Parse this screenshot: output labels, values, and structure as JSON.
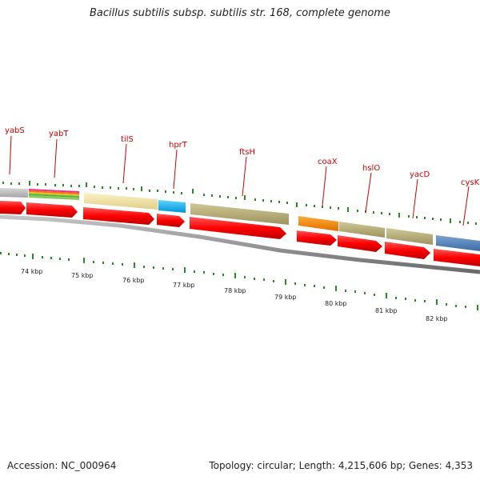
{
  "title": "Bacillus subtilis subsp. subtilis str. 168, complete genome",
  "footer": {
    "accession": "Accession: NC_000964",
    "stats": "Topology: circular; Length: 4,215,606 bp; Genes: 4,353"
  },
  "gene_labels": [
    "yabS",
    "yabT",
    "tilS",
    "hprT",
    "ftsH",
    "coaX",
    "hslO",
    "yacD",
    "cysK"
  ],
  "kbp_labels": [
    "74 kbp",
    "75 kbp",
    "76 kbp",
    "77 kbp",
    "78 kbp",
    "79 kbp",
    "80 kbp",
    "81 kbp",
    "82 kbp"
  ],
  "colors": {
    "cds_arrow": "#ff0000",
    "backbone": "#888888",
    "label": "#cc0000",
    "tick": "#2a8a2a"
  }
}
